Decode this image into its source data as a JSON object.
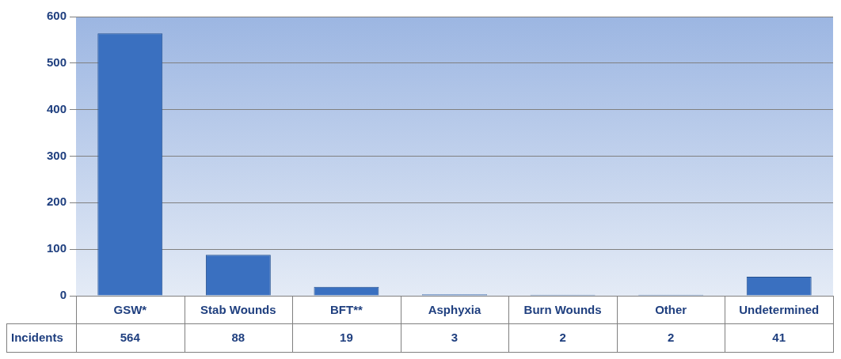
{
  "chart_data": {
    "type": "bar",
    "categories": [
      "GSW*",
      "Stab Wounds",
      "BFT**",
      "Asphyxia",
      "Burn Wounds",
      "Other",
      "Undetermined"
    ],
    "series": [
      {
        "name": "Incidents",
        "color": "#3a70c0",
        "values": [
          564,
          88,
          19,
          3,
          2,
          2,
          41
        ]
      }
    ],
    "ylim": [
      0,
      600
    ],
    "yticks": [
      0,
      100,
      200,
      300,
      400,
      500,
      600
    ],
    "grid": "y",
    "legend": false,
    "data_labels": true
  }
}
